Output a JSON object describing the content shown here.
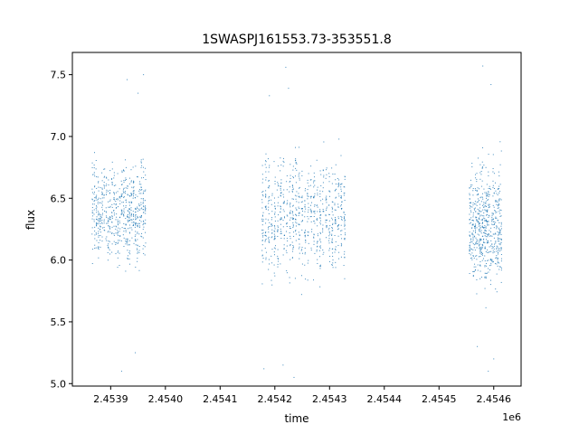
{
  "chart_data": {
    "type": "scatter",
    "title": "1SWASPJ161553.73-353551.8",
    "xlabel": "time",
    "ylabel": "flux",
    "x_offset_label": "1e6",
    "x_scale_note": "x tick values shown in units of 1e6",
    "xlim": [
      2.45383,
      2.45465
    ],
    "ylim": [
      4.98,
      7.68
    ],
    "x_ticks": [
      2.4539,
      2.454,
      2.4541,
      2.4542,
      2.4543,
      2.4544,
      2.4545,
      2.4546
    ],
    "x_tick_labels": [
      "2.4539",
      "2.4540",
      "2.4541",
      "2.4542",
      "2.4543",
      "2.4544",
      "2.4545",
      "2.4546"
    ],
    "y_ticks": [
      5.0,
      5.5,
      6.0,
      6.5,
      7.0,
      7.5
    ],
    "y_tick_labels": [
      "5.0",
      "5.5",
      "6.0",
      "6.5",
      "7.0",
      "7.5"
    ],
    "grid": false,
    "marker_color": "#1f77b4",
    "series": [
      {
        "clusters": [
          {
            "x_range": [
              2.453865,
              2.453965
            ],
            "center": 6.38,
            "spread": 0.18,
            "count": 650
          },
          {
            "x_range": [
              2.454175,
              2.45433
            ],
            "center": 6.36,
            "spread": 0.22,
            "count": 800
          },
          {
            "x_range": [
              2.454555,
              2.454615
            ],
            "center": 6.28,
            "spread": 0.24,
            "count": 600
          }
        ],
        "points": [
          {
            "x": 2.45393,
            "y": 7.46
          },
          {
            "x": 2.45395,
            "y": 7.35
          },
          {
            "x": 2.45396,
            "y": 7.5
          },
          {
            "x": 2.45392,
            "y": 5.1
          },
          {
            "x": 2.453945,
            "y": 5.25
          },
          {
            "x": 2.45422,
            "y": 7.56
          },
          {
            "x": 2.45419,
            "y": 7.33
          },
          {
            "x": 2.454225,
            "y": 7.39
          },
          {
            "x": 2.454215,
            "y": 5.15
          },
          {
            "x": 2.454235,
            "y": 5.05
          },
          {
            "x": 2.45418,
            "y": 5.12
          },
          {
            "x": 2.45458,
            "y": 7.57
          },
          {
            "x": 2.454595,
            "y": 7.42
          },
          {
            "x": 2.45459,
            "y": 5.1
          },
          {
            "x": 2.4546,
            "y": 5.2
          },
          {
            "x": 2.45457,
            "y": 5.3
          }
        ]
      }
    ]
  }
}
